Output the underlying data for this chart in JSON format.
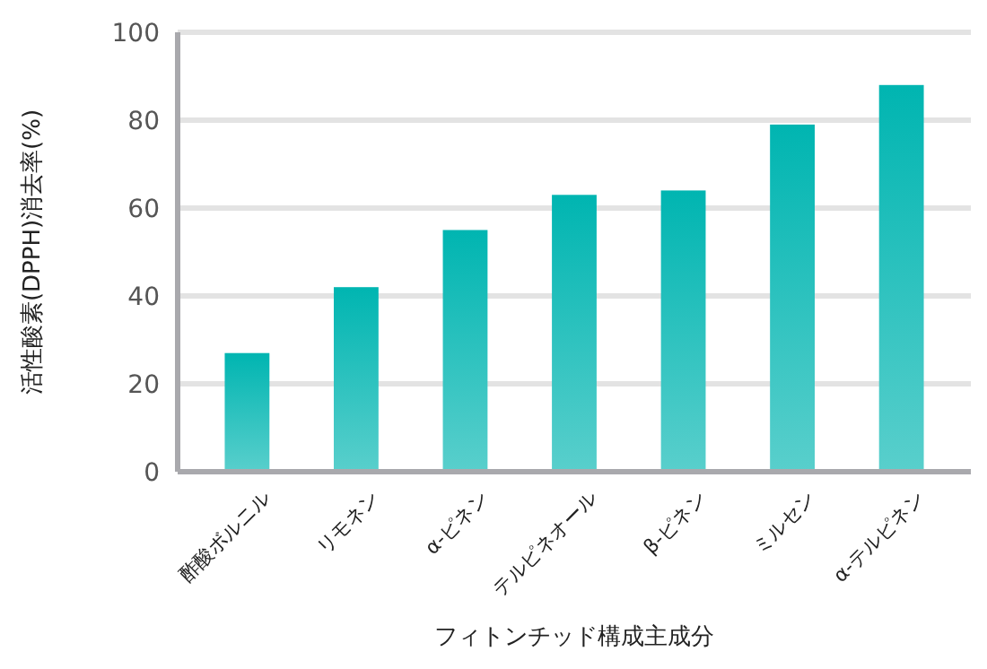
{
  "chart_data": {
    "type": "bar",
    "xlabel": "フィトンチッド構成主成分",
    "ylabel": "活性酸素(DPPH)消去率(%)",
    "categories": [
      "酢酸ボルニル",
      "リモネン",
      "α-ピネン",
      "テルピネオール",
      "β-ピネン",
      "ミルセン",
      "α-テルピネン"
    ],
    "values": [
      27,
      42,
      55,
      63,
      64,
      79,
      88
    ],
    "color": "#00b5b1",
    "ylim": [
      0,
      100
    ],
    "yticks": [
      0,
      20,
      40,
      60,
      80,
      100
    ],
    "grid": "y"
  }
}
